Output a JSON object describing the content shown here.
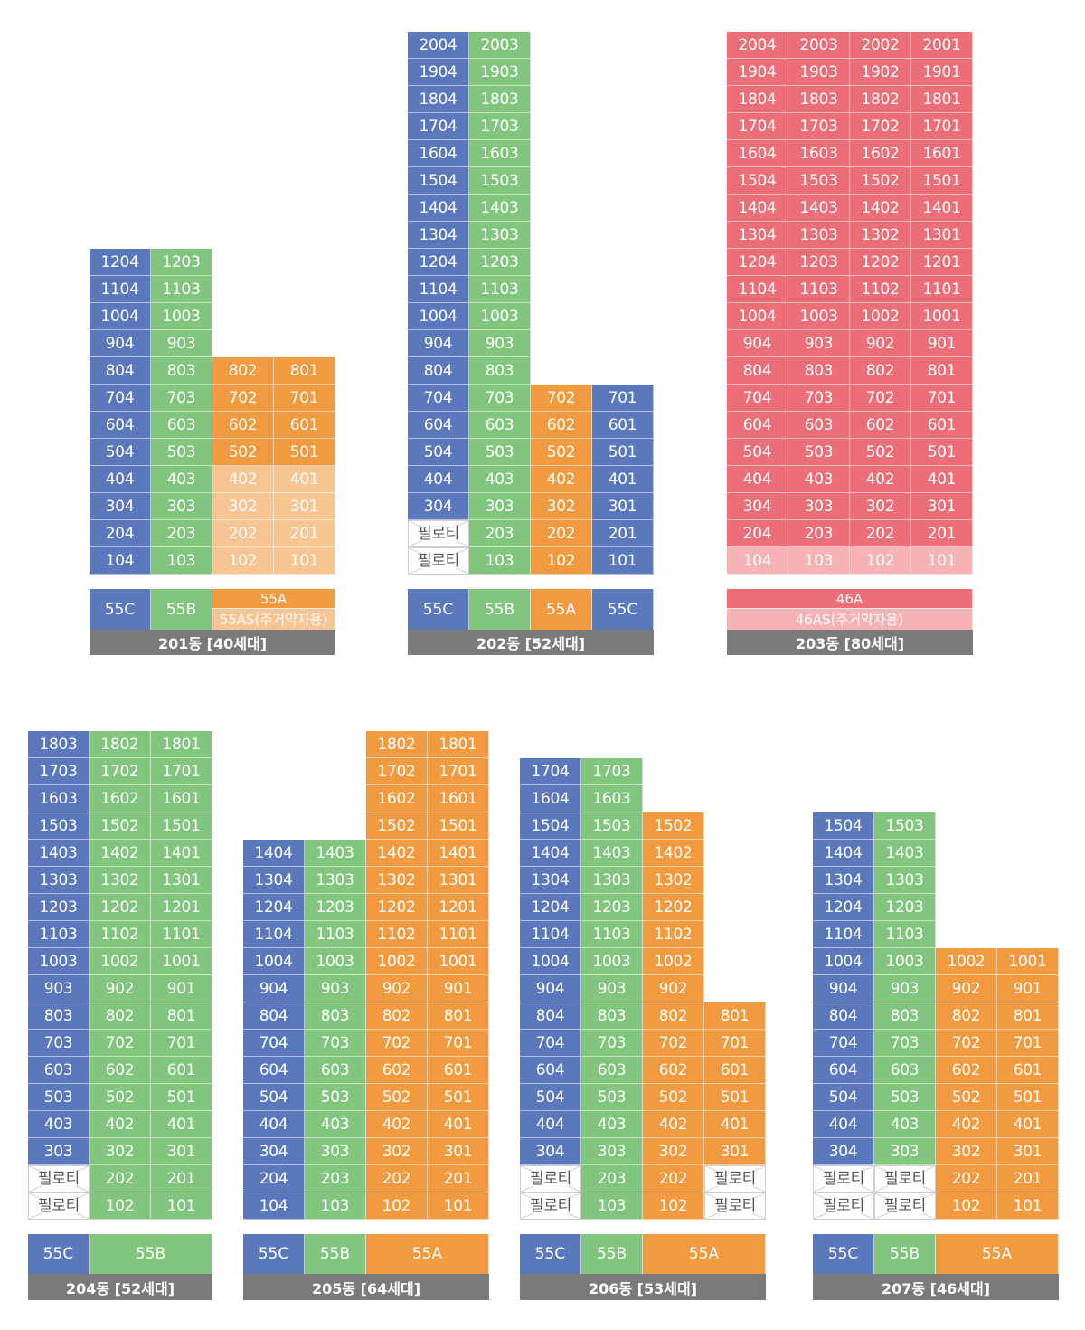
{
  "colors": {
    "55C": "#5b78bd",
    "55B": "#82c57f",
    "55A": "#f29a3f",
    "55AS": "#f7c594",
    "46A": "#ec6e78",
    "46AS": "#f6b3b6",
    "title_bg": "#7a7a7a"
  },
  "piloti_label": "필로티",
  "buildings": [
    {
      "id": "201",
      "title": "201동 [40세대]",
      "columns": [
        {
          "type": "55C",
          "units": [
            "1204",
            "1104",
            "1004",
            "904",
            "804",
            "704",
            "604",
            "504",
            "404",
            "304",
            "204",
            "104"
          ]
        },
        {
          "type": "55B",
          "units": [
            "1203",
            "1103",
            "1003",
            "903",
            "803",
            "703",
            "603",
            "503",
            "403",
            "303",
            "203",
            "103"
          ]
        },
        {
          "type": "55A",
          "units": [
            "802",
            "702",
            "602",
            "502",
            "402",
            "302",
            "202",
            "102"
          ],
          "lower_type": "55AS",
          "lower_units": [
            "402",
            "302",
            "202",
            "102"
          ]
        },
        {
          "type": "55A",
          "units": [
            "801",
            "701",
            "601",
            "501",
            "401",
            "301",
            "201",
            "101"
          ],
          "lower_type": "55AS",
          "lower_units": [
            "401",
            "301",
            "201",
            "101"
          ]
        }
      ],
      "legend": [
        {
          "label": "55C",
          "type": "55C"
        },
        {
          "label": "55B",
          "type": "55B"
        },
        {
          "label": "55A",
          "type": "55A",
          "sub_label": "55AS(주거약자용)",
          "sub_type": "55AS"
        }
      ]
    },
    {
      "id": "202",
      "title": "202동 [52세대]",
      "columns": [
        {
          "type": "55C",
          "units": [
            "2004",
            "1904",
            "1804",
            "1704",
            "1604",
            "1504",
            "1404",
            "1304",
            "1204",
            "1104",
            "1004",
            "904",
            "804",
            "704",
            "604",
            "504",
            "404",
            "304",
            "필로티",
            "필로티"
          ]
        },
        {
          "type": "55B",
          "units": [
            "2003",
            "1903",
            "1803",
            "1703",
            "1603",
            "1503",
            "1403",
            "1303",
            "1203",
            "1103",
            "1003",
            "903",
            "803",
            "703",
            "603",
            "503",
            "403",
            "303",
            "203",
            "103"
          ]
        },
        {
          "type": "55A",
          "units": [
            "702",
            "602",
            "502",
            "402",
            "302",
            "202",
            "102"
          ]
        },
        {
          "type": "55C",
          "units": [
            "701",
            "601",
            "501",
            "401",
            "301",
            "201",
            "101"
          ]
        }
      ],
      "legend": [
        {
          "label": "55C",
          "type": "55C"
        },
        {
          "label": "55B",
          "type": "55B"
        },
        {
          "label": "55A",
          "type": "55A"
        },
        {
          "label": "55C",
          "type": "55C"
        }
      ]
    },
    {
      "id": "203",
      "title": "203동 [80세대]",
      "columns": [
        {
          "type": "46A",
          "units": [
            "2004",
            "1904",
            "1804",
            "1704",
            "1604",
            "1504",
            "1404",
            "1304",
            "1204",
            "1104",
            "1004",
            "904",
            "804",
            "704",
            "604",
            "504",
            "404",
            "304",
            "204",
            "104"
          ],
          "lower_type": "46AS",
          "lower_units": [
            "104"
          ]
        },
        {
          "type": "46A",
          "units": [
            "2003",
            "1903",
            "1803",
            "1703",
            "1603",
            "1503",
            "1403",
            "1303",
            "1203",
            "1103",
            "1003",
            "903",
            "803",
            "703",
            "603",
            "503",
            "403",
            "303",
            "203",
            "103"
          ],
          "lower_type": "46AS",
          "lower_units": [
            "103"
          ]
        },
        {
          "type": "46A",
          "units": [
            "2002",
            "1902",
            "1802",
            "1702",
            "1602",
            "1502",
            "1402",
            "1302",
            "1202",
            "1102",
            "1002",
            "902",
            "802",
            "702",
            "602",
            "502",
            "402",
            "302",
            "202",
            "102"
          ],
          "lower_type": "46AS",
          "lower_units": [
            "102"
          ]
        },
        {
          "type": "46A",
          "units": [
            "2001",
            "1901",
            "1801",
            "1701",
            "1601",
            "1501",
            "1401",
            "1301",
            "1201",
            "1101",
            "1001",
            "901",
            "801",
            "701",
            "601",
            "501",
            "401",
            "301",
            "201",
            "101"
          ],
          "lower_type": "46AS",
          "lower_units": [
            "101"
          ]
        }
      ],
      "legend": [
        {
          "label": "46A",
          "type": "46A",
          "sub_label": "46AS(주거약자용)",
          "sub_type": "46AS",
          "span": 4
        }
      ]
    },
    {
      "id": "204",
      "title": "204동 [52세대]",
      "columns": [
        {
          "type": "55C",
          "units": [
            "1803",
            "1703",
            "1603",
            "1503",
            "1403",
            "1303",
            "1203",
            "1103",
            "1003",
            "903",
            "803",
            "703",
            "603",
            "503",
            "403",
            "303",
            "필로티",
            "필로티"
          ]
        },
        {
          "type": "55B",
          "units": [
            "1802",
            "1702",
            "1602",
            "1502",
            "1402",
            "1302",
            "1202",
            "1102",
            "1002",
            "902",
            "802",
            "702",
            "602",
            "502",
            "402",
            "302",
            "202",
            "102"
          ]
        },
        {
          "type": "55B",
          "units": [
            "1801",
            "1701",
            "1601",
            "1501",
            "1401",
            "1301",
            "1201",
            "1101",
            "1001",
            "901",
            "801",
            "701",
            "601",
            "501",
            "401",
            "301",
            "201",
            "101"
          ]
        }
      ],
      "legend": [
        {
          "label": "55C",
          "type": "55C",
          "span": 1
        },
        {
          "label": "55B",
          "type": "55B",
          "span": 2
        }
      ]
    },
    {
      "id": "205",
      "title": "205동 [64세대]",
      "columns": [
        {
          "type": "55C",
          "units": [
            "1404",
            "1304",
            "1204",
            "1104",
            "1004",
            "904",
            "804",
            "704",
            "604",
            "504",
            "404",
            "304",
            "204",
            "104"
          ]
        },
        {
          "type": "55B",
          "units": [
            "1403",
            "1303",
            "1203",
            "1103",
            "1003",
            "903",
            "803",
            "703",
            "603",
            "503",
            "403",
            "303",
            "203",
            "103"
          ]
        },
        {
          "type": "55A",
          "units": [
            "1802",
            "1702",
            "1602",
            "1502",
            "1402",
            "1302",
            "1202",
            "1102",
            "1002",
            "902",
            "802",
            "702",
            "602",
            "502",
            "402",
            "302",
            "202",
            "102"
          ]
        },
        {
          "type": "55A",
          "units": [
            "1801",
            "1701",
            "1601",
            "1501",
            "1401",
            "1301",
            "1201",
            "1101",
            "1001",
            "901",
            "801",
            "701",
            "601",
            "501",
            "401",
            "301",
            "201",
            "101"
          ]
        }
      ],
      "legend": [
        {
          "label": "55C",
          "type": "55C",
          "span": 1
        },
        {
          "label": "55B",
          "type": "55B",
          "span": 1
        },
        {
          "label": "55A",
          "type": "55A",
          "span": 2
        }
      ]
    },
    {
      "id": "206",
      "title": "206동 [53세대]",
      "columns": [
        {
          "type": "55C",
          "units": [
            "1704",
            "1604",
            "1504",
            "1404",
            "1304",
            "1204",
            "1104",
            "1004",
            "904",
            "804",
            "704",
            "604",
            "504",
            "404",
            "304",
            "필로티",
            "필로티"
          ]
        },
        {
          "type": "55B",
          "units": [
            "1703",
            "1603",
            "1503",
            "1403",
            "1303",
            "1203",
            "1103",
            "1003",
            "903",
            "803",
            "703",
            "603",
            "503",
            "403",
            "303",
            "203",
            "103"
          ]
        },
        {
          "type": "55A",
          "units": [
            "1502",
            "1402",
            "1302",
            "1202",
            "1102",
            "1002",
            "902",
            "802",
            "702",
            "602",
            "502",
            "402",
            "302",
            "202",
            "102"
          ]
        },
        {
          "type": "55A",
          "units": [
            "801",
            "701",
            "601",
            "501",
            "401",
            "301",
            "필로티",
            "필로티"
          ]
        }
      ],
      "legend": [
        {
          "label": "55C",
          "type": "55C",
          "span": 1
        },
        {
          "label": "55B",
          "type": "55B",
          "span": 1
        },
        {
          "label": "55A",
          "type": "55A",
          "span": 2
        }
      ]
    },
    {
      "id": "207",
      "title": "207동 [46세대]",
      "columns": [
        {
          "type": "55C",
          "units": [
            "1504",
            "1404",
            "1304",
            "1204",
            "1104",
            "1004",
            "904",
            "804",
            "704",
            "604",
            "504",
            "404",
            "304",
            "필로티",
            "필로티"
          ]
        },
        {
          "type": "55B",
          "units": [
            "1503",
            "1403",
            "1303",
            "1203",
            "1103",
            "1003",
            "903",
            "803",
            "703",
            "603",
            "503",
            "403",
            "303",
            "필로티",
            "필로티"
          ]
        },
        {
          "type": "55A",
          "units": [
            "1002",
            "902",
            "802",
            "702",
            "602",
            "502",
            "402",
            "302",
            "202",
            "102"
          ]
        },
        {
          "type": "55A",
          "units": [
            "1001",
            "901",
            "801",
            "701",
            "601",
            "501",
            "401",
            "301",
            "201",
            "101"
          ]
        }
      ],
      "legend": [
        {
          "label": "55C",
          "type": "55C",
          "span": 1
        },
        {
          "label": "55B",
          "type": "55B",
          "span": 1
        },
        {
          "label": "55A",
          "type": "55A",
          "span": 2
        }
      ]
    }
  ]
}
